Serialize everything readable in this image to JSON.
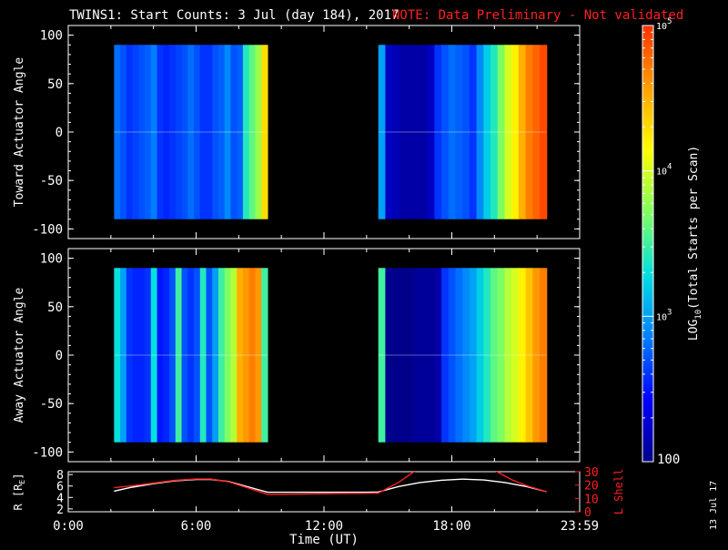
{
  "header": {
    "title": "TWINS1: Start Counts:  3 Jul (day 184), 2017",
    "note": "NOTE: Data Preliminary - Not validated"
  },
  "stamp": "13 Jul 17",
  "colors": {
    "background": "#000000",
    "foreground": "#ffffff",
    "note": "#ff2020",
    "lshell": "#ff2020",
    "radius": "#ffffff"
  },
  "colorbar": {
    "label": "LOG10(Total Starts per Scan)",
    "label_main": "LOG",
    "label_sub": "10",
    "label_rest": "(Total Starts per Scan)",
    "min_label": "100",
    "min_value": 100,
    "max_value": 100000,
    "tick_labels": [
      {
        "value": 1000,
        "base": "10",
        "exp": "3"
      },
      {
        "value": 10000,
        "base": "10",
        "exp": "4"
      },
      {
        "value": 100000,
        "base": "10",
        "exp": "5"
      }
    ],
    "colormap": [
      "#00008b",
      "#0000ff",
      "#0080ff",
      "#00e0e0",
      "#80ff60",
      "#ffff00",
      "#ffa000",
      "#ff3000"
    ]
  },
  "chart_data": [
    {
      "type": "heatmap",
      "ylabel": "Toward Actuator Angle",
      "ylim": [
        -110,
        110
      ],
      "y_ticks": [
        "100",
        "50",
        "0",
        "-50",
        "-100"
      ],
      "y_tick_values": [
        100,
        50,
        0,
        -50,
        -100
      ],
      "angle_range": [
        -90,
        90
      ],
      "xlim_hours": [
        0,
        24
      ],
      "segments": [
        {
          "start": 2.15,
          "end": 9.35,
          "log_counts": [
            2.8,
            2.7,
            2.6,
            2.65,
            2.7,
            2.75,
            2.85,
            2.6,
            2.55,
            2.6,
            2.65,
            2.7,
            2.8,
            2.7,
            2.6,
            2.6,
            2.7,
            2.75,
            2.9,
            2.7,
            2.75,
            3.4,
            3.6,
            3.8,
            4.3
          ]
        },
        {
          "start": 14.55,
          "end": 22.45,
          "log_counts": [
            3.0,
            2.2,
            2.15,
            2.1,
            2.1,
            2.1,
            2.1,
            2.2,
            2.6,
            2.7,
            2.8,
            2.75,
            2.7,
            2.6,
            2.9,
            3.2,
            3.4,
            3.7,
            4.0,
            4.2,
            4.5,
            4.7,
            4.8,
            4.9
          ]
        }
      ]
    },
    {
      "type": "heatmap",
      "ylabel": "Away Actuator Angle",
      "ylim": [
        -110,
        110
      ],
      "y_ticks": [
        "100",
        "50",
        "0",
        "-50",
        "-100"
      ],
      "y_tick_values": [
        100,
        50,
        0,
        -50,
        -100
      ],
      "angle_range": [
        -90,
        90
      ],
      "xlim_hours": [
        0,
        24
      ],
      "segments": [
        {
          "start": 2.15,
          "end": 9.35,
          "log_counts": [
            3.3,
            3.0,
            2.6,
            2.55,
            2.55,
            2.6,
            3.3,
            2.5,
            2.55,
            2.7,
            3.5,
            2.7,
            2.6,
            2.7,
            3.4,
            2.7,
            3.0,
            3.5,
            3.7,
            3.9,
            4.5,
            4.6,
            4.7,
            4.6,
            3.5
          ]
        },
        {
          "start": 14.55,
          "end": 22.45,
          "log_counts": [
            3.5,
            2.0,
            2.0,
            2.0,
            2.0,
            2.05,
            2.05,
            2.05,
            2.1,
            2.6,
            2.7,
            2.8,
            2.9,
            3.0,
            3.2,
            3.4,
            3.6,
            3.7,
            3.9,
            4.0,
            4.2,
            4.4,
            4.6,
            4.7
          ]
        }
      ]
    },
    {
      "type": "line",
      "xlabel": "Time (UT)",
      "x_tick_labels": [
        "0:00",
        "6:00",
        "12:00",
        "18:00",
        "23:59"
      ],
      "x_tick_values": [
        0,
        6,
        12,
        18,
        24
      ],
      "ylabel_left": "R [RE]",
      "ylabel_left_main": "R [R",
      "ylabel_left_sub": "E",
      "ylabel_left_close": "]",
      "ylabel_right": "L Shell",
      "ylim_left": [
        1.5,
        8.5
      ],
      "ylim_right": [
        0,
        30
      ],
      "left_ticks": [
        "2",
        "4",
        "6",
        "8"
      ],
      "left_tick_values": [
        2,
        4,
        6,
        8
      ],
      "right_ticks": [
        "0",
        "10",
        "20",
        "30"
      ],
      "right_tick_values": [
        0,
        10,
        20,
        30
      ],
      "series": [
        {
          "axis": "left",
          "x": [
            2.15,
            3,
            4,
            5,
            6,
            6.7,
            7.5,
            8.5,
            9.35,
            10,
            11,
            12,
            13,
            14,
            14.55,
            15.5,
            16.5,
            17.5,
            18.5,
            19.5,
            20.5,
            21.5,
            22.45
          ],
          "y": [
            5.1,
            5.8,
            6.4,
            6.9,
            7.15,
            7.15,
            6.8,
            5.8,
            4.9,
            4.9,
            4.9,
            4.9,
            4.9,
            4.9,
            4.95,
            5.9,
            6.6,
            7.0,
            7.2,
            7.05,
            6.6,
            5.9,
            5.0
          ]
        },
        {
          "axis": "right",
          "x": [
            2.15,
            3,
            4,
            5,
            6,
            6.7,
            7.5,
            8.5,
            9.35,
            10,
            11,
            12,
            13,
            14,
            14.55,
            15.5,
            16.5,
            17.5,
            18.5,
            19.5,
            20,
            20.8,
            21.6,
            22.45
          ],
          "y": [
            18,
            19.5,
            21.5,
            23.5,
            24.5,
            24.5,
            22.5,
            17.5,
            13,
            13,
            13.2,
            13.5,
            13.7,
            13.8,
            14,
            22,
            33,
            33,
            33,
            33,
            31,
            24,
            19,
            15
          ]
        }
      ]
    }
  ]
}
